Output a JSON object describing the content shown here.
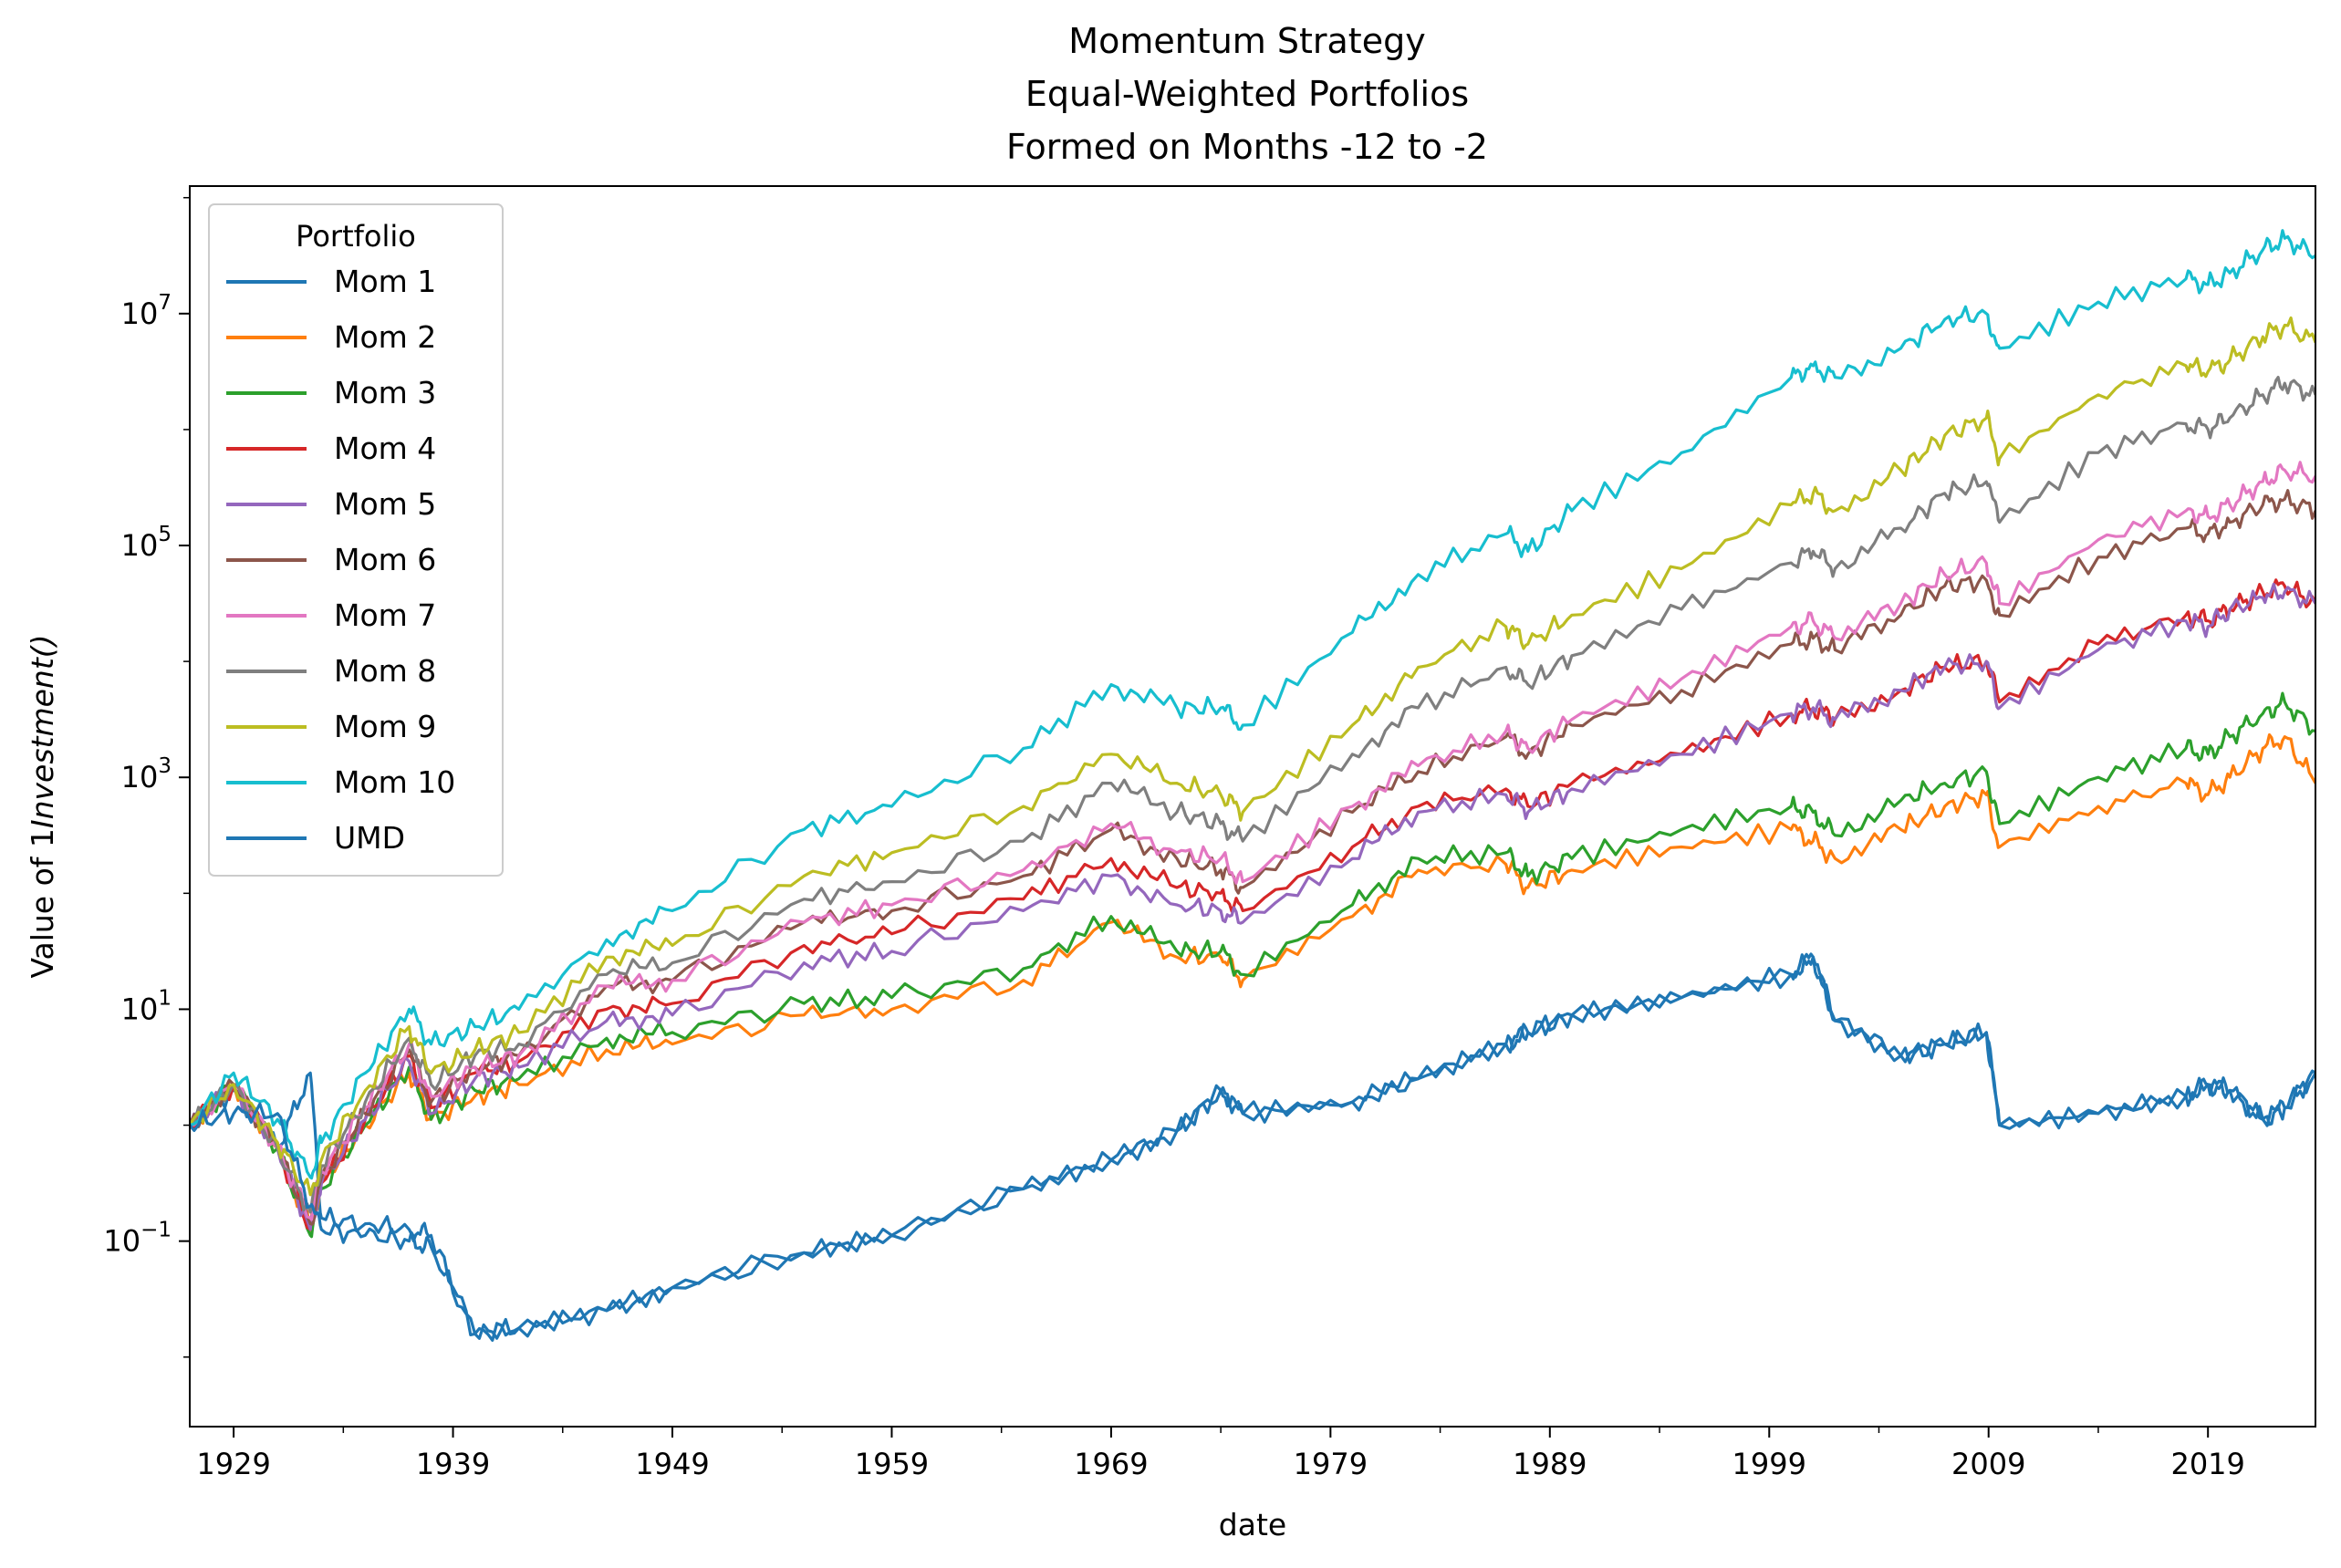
{
  "chart_data": {
    "type": "line",
    "title": [
      "Momentum Strategy",
      "Equal-Weighted Portfolios",
      "Formed on Months -12 to -2"
    ],
    "xlabel": "date",
    "ylabel": "Value of $1 Investment ($)",
    "ylabel_parts": [
      "Value of 1",
      "Investment",
      "()"
    ],
    "yscale": "log",
    "xlim": [
      1927,
      2023.9
    ],
    "ylim_log10": [
      -2.6,
      8.1
    ],
    "x_ticks": [
      1929,
      1939,
      1949,
      1959,
      1969,
      1979,
      1989,
      1999,
      2009,
      2019
    ],
    "y_ticks": [
      {
        "exp": 7,
        "base": "10",
        "exp_label": "7"
      },
      {
        "exp": 5,
        "base": "10",
        "exp_label": "5"
      },
      {
        "exp": 3,
        "base": "10",
        "exp_label": "3"
      },
      {
        "exp": 1,
        "base": "10",
        "exp_label": "1"
      },
      {
        "exp": -1,
        "base": "10",
        "exp_label": "−1"
      }
    ],
    "grid": false,
    "legend": {
      "title": "Portfolio",
      "placement": "top-left"
    },
    "x": [
      1927,
      1929,
      1931,
      1932.5,
      1933,
      1935,
      1937,
      1938,
      1940,
      1942,
      1946,
      1949,
      1955,
      1959,
      1965,
      1969,
      1972,
      1974,
      1975,
      1980,
      1983,
      1987,
      1988,
      1990,
      1995,
      2000,
      2001,
      2002,
      2005,
      2007,
      2008.9,
      2009.5,
      2014,
      2018,
      2019,
      2020,
      2021.5,
      2022.5,
      2023.9
    ],
    "series": [
      {
        "name": "Mom 1",
        "color": "#1f77b4",
        "log10": [
          0.0,
          0.3,
          -0.2,
          0.45,
          -0.8,
          -0.85,
          -0.9,
          -0.95,
          -1.8,
          -1.75,
          -1.6,
          -1.4,
          -1.1,
          -0.95,
          -0.55,
          -0.3,
          -0.05,
          0.3,
          0.1,
          0.2,
          0.4,
          0.7,
          0.8,
          0.95,
          1.1,
          1.3,
          1.45,
          0.9,
          0.6,
          0.7,
          0.8,
          0.0,
          0.1,
          0.25,
          0.35,
          0.3,
          0.05,
          0.15,
          0.45
        ]
      },
      {
        "name": "Mom 2",
        "color": "#ff7f0e",
        "log10": [
          0.0,
          0.35,
          -0.2,
          -0.9,
          -0.5,
          0.0,
          0.45,
          0.05,
          0.25,
          0.35,
          0.65,
          0.7,
          0.95,
          1.0,
          1.25,
          1.75,
          1.45,
          1.45,
          1.25,
          1.8,
          2.2,
          2.25,
          2.05,
          2.2,
          2.4,
          2.55,
          2.45,
          2.3,
          2.55,
          2.75,
          2.85,
          2.4,
          2.75,
          2.95,
          2.85,
          3.0,
          3.25,
          3.35,
          2.95
        ]
      },
      {
        "name": "Mom 3",
        "color": "#2ca02c",
        "log10": [
          0.0,
          0.35,
          -0.2,
          -0.95,
          -0.55,
          0.0,
          0.5,
          0.05,
          0.3,
          0.4,
          0.75,
          0.8,
          1.05,
          1.1,
          1.35,
          1.8,
          1.5,
          1.5,
          1.3,
          1.9,
          2.3,
          2.35,
          2.15,
          2.3,
          2.55,
          2.75,
          2.7,
          2.5,
          2.8,
          2.95,
          3.05,
          2.6,
          3.0,
          3.25,
          3.2,
          3.35,
          3.55,
          3.65,
          3.4
        ]
      },
      {
        "name": "Mom 4",
        "color": "#d62728",
        "log10": [
          0.0,
          0.35,
          -0.2,
          -0.9,
          -0.5,
          0.05,
          0.6,
          0.15,
          0.45,
          0.55,
          1.0,
          1.05,
          1.55,
          1.65,
          1.95,
          2.3,
          2.05,
          2.0,
          1.85,
          2.4,
          2.75,
          2.9,
          2.75,
          2.95,
          3.2,
          3.55,
          3.6,
          3.5,
          3.75,
          3.95,
          4.0,
          3.65,
          4.15,
          4.4,
          4.35,
          4.45,
          4.6,
          4.65,
          4.5
        ]
      },
      {
        "name": "Mom 5",
        "color": "#9467bd",
        "log10": [
          0.0,
          0.35,
          -0.2,
          -0.9,
          -0.5,
          0.05,
          0.55,
          0.1,
          0.4,
          0.5,
          0.9,
          0.95,
          1.4,
          1.5,
          1.85,
          2.15,
          1.9,
          1.85,
          1.75,
          2.3,
          2.7,
          2.85,
          2.7,
          2.9,
          3.2,
          3.55,
          3.6,
          3.5,
          3.75,
          3.95,
          4.0,
          3.6,
          4.1,
          4.35,
          4.3,
          4.45,
          4.55,
          4.6,
          4.5
        ]
      },
      {
        "name": "Mom 6",
        "color": "#8c564b",
        "log10": [
          0.0,
          0.35,
          -0.2,
          -0.85,
          -0.45,
          0.1,
          0.65,
          0.2,
          0.5,
          0.6,
          1.2,
          1.25,
          1.75,
          1.85,
          2.15,
          2.55,
          2.3,
          2.2,
          2.05,
          2.7,
          3.05,
          3.35,
          3.2,
          3.45,
          3.75,
          4.15,
          4.2,
          4.1,
          4.4,
          4.65,
          4.7,
          4.4,
          4.9,
          5.15,
          5.1,
          5.2,
          5.35,
          5.4,
          5.3
        ]
      },
      {
        "name": "Mom 7",
        "color": "#e377c2",
        "log10": [
          0.0,
          0.35,
          -0.2,
          -0.8,
          -0.4,
          0.15,
          0.7,
          0.25,
          0.5,
          0.6,
          1.2,
          1.25,
          1.75,
          1.9,
          2.2,
          2.6,
          2.35,
          2.3,
          2.1,
          2.75,
          3.1,
          3.4,
          3.25,
          3.5,
          3.85,
          4.3,
          4.35,
          4.2,
          4.5,
          4.75,
          4.85,
          4.5,
          5.05,
          5.3,
          5.25,
          5.35,
          5.55,
          5.65,
          5.6
        ]
      },
      {
        "name": "Mom 8",
        "color": "#7f7f7f",
        "log10": [
          0.0,
          0.35,
          -0.2,
          -0.75,
          -0.35,
          0.2,
          0.75,
          0.35,
          0.6,
          0.7,
          1.3,
          1.4,
          1.95,
          2.1,
          2.45,
          2.95,
          2.7,
          2.6,
          2.45,
          3.2,
          3.6,
          3.95,
          3.8,
          4.05,
          4.45,
          4.85,
          4.95,
          4.8,
          5.15,
          5.45,
          5.55,
          5.2,
          5.8,
          6.05,
          6.0,
          6.1,
          6.3,
          6.4,
          6.3
        ]
      },
      {
        "name": "Mom 9",
        "color": "#bcbd22",
        "log10": [
          0.0,
          0.35,
          -0.15,
          -0.6,
          -0.3,
          0.3,
          0.85,
          0.45,
          0.65,
          0.8,
          1.45,
          1.55,
          2.15,
          2.35,
          2.75,
          3.2,
          2.95,
          2.85,
          2.7,
          3.45,
          3.95,
          4.3,
          4.15,
          4.4,
          4.8,
          5.35,
          5.45,
          5.3,
          5.65,
          5.95,
          6.1,
          5.75,
          6.3,
          6.55,
          6.5,
          6.6,
          6.8,
          6.9,
          6.75
        ]
      },
      {
        "name": "Mom 10",
        "color": "#17becf",
        "log10": [
          0.0,
          0.45,
          0.05,
          -0.45,
          -0.15,
          0.45,
          1.0,
          0.7,
          0.85,
          1.0,
          1.6,
          1.85,
          2.55,
          2.75,
          3.25,
          3.8,
          3.6,
          3.6,
          3.45,
          4.25,
          4.75,
          5.1,
          4.95,
          5.3,
          5.8,
          6.45,
          6.55,
          6.45,
          6.7,
          6.95,
          7.0,
          6.7,
          7.1,
          7.3,
          7.25,
          7.35,
          7.55,
          7.65,
          7.5
        ]
      },
      {
        "name": "UMD",
        "color": "#1f77b4",
        "log10": [
          0.0,
          0.1,
          0.1,
          -0.7,
          -0.9,
          -0.95,
          -1.0,
          -1.05,
          -1.8,
          -1.75,
          -1.6,
          -1.4,
          -1.1,
          -0.95,
          -0.55,
          -0.3,
          -0.05,
          0.3,
          0.1,
          0.2,
          0.4,
          0.7,
          0.8,
          0.95,
          1.1,
          1.3,
          1.45,
          0.9,
          0.6,
          0.7,
          0.8,
          0.0,
          0.1,
          0.25,
          0.35,
          0.3,
          0.05,
          0.15,
          0.45
        ]
      }
    ]
  }
}
